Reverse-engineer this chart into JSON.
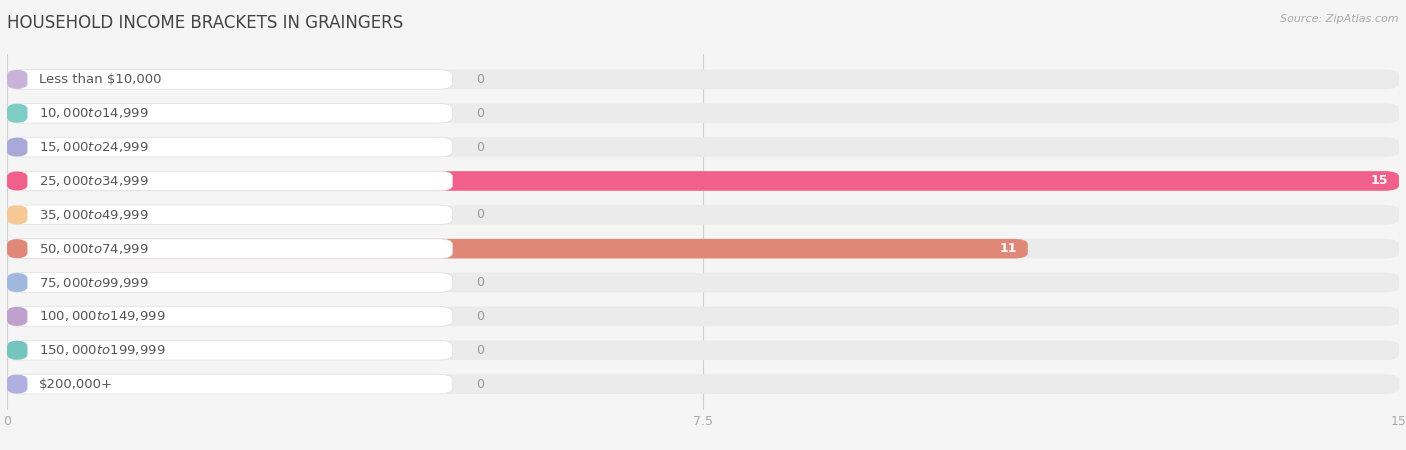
{
  "title": "HOUSEHOLD INCOME BRACKETS IN GRAINGERS",
  "source": "Source: ZipAtlas.com",
  "categories": [
    "Less than $10,000",
    "$10,000 to $14,999",
    "$15,000 to $24,999",
    "$25,000 to $34,999",
    "$35,000 to $49,999",
    "$50,000 to $74,999",
    "$75,000 to $99,999",
    "$100,000 to $149,999",
    "$150,000 to $199,999",
    "$200,000+"
  ],
  "values": [
    0,
    0,
    0,
    15,
    0,
    11,
    0,
    0,
    0,
    0
  ],
  "bar_colors": [
    "#c9b3d9",
    "#7ecdc5",
    "#a9a9d9",
    "#f0608a",
    "#f5c896",
    "#e08878",
    "#a0b8dc",
    "#c0a0cc",
    "#72c4bc",
    "#b0b0e0"
  ],
  "background_color": "#f5f5f5",
  "row_bg_color": "#ebebeb",
  "xlim": [
    0,
    15
  ],
  "xticks": [
    0,
    7.5,
    15
  ],
  "title_fontsize": 12,
  "label_fontsize": 9.5,
  "value_fontsize": 9
}
